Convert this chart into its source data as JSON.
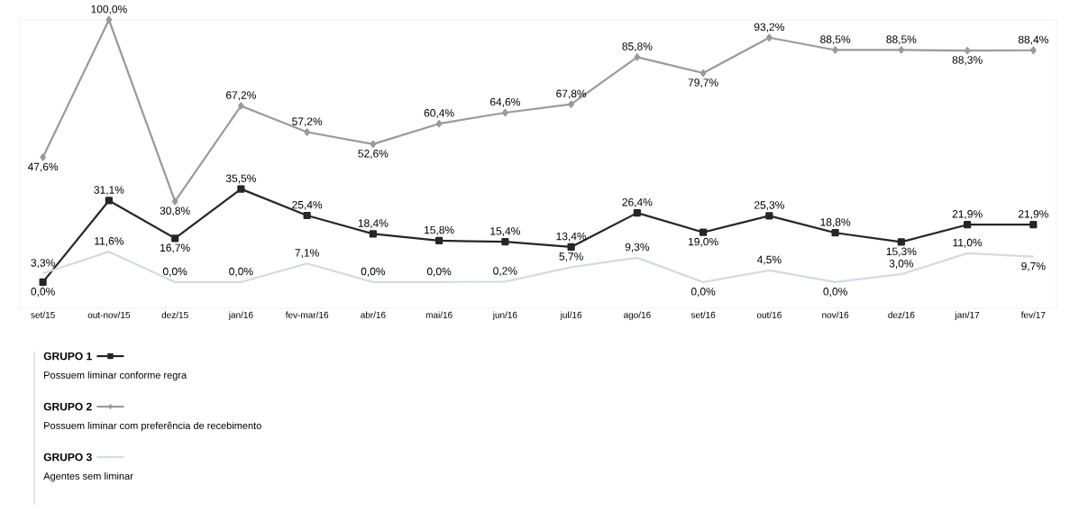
{
  "chart_data": {
    "type": "line",
    "categories": [
      "set/15",
      "out-nov/15",
      "dez/15",
      "jan/16",
      "fev-mar/16",
      "abr/16",
      "mai/16",
      "jun/16",
      "jul/16",
      "ago/16",
      "set/16",
      "out/16",
      "nov/16",
      "dez/16",
      "jan/17",
      "fev/17"
    ],
    "series": [
      {
        "name": "GRUPO 1",
        "color": "#262626",
        "marker": "square",
        "values": [
          0.0,
          31.1,
          16.7,
          35.5,
          25.4,
          18.4,
          15.8,
          15.4,
          13.4,
          26.4,
          19.0,
          25.3,
          18.8,
          15.3,
          21.9,
          21.9
        ],
        "value_labels": [
          "0,0%",
          "31,1%",
          "16,7%",
          "35,5%",
          "25,4%",
          "18,4%",
          "15,8%",
          "15,4%",
          "13,4%",
          "26,4%",
          "19,0%",
          "25,3%",
          "18,8%",
          "15,3%",
          "21,9%",
          "21,9%"
        ]
      },
      {
        "name": "GRUPO 2",
        "color": "#9a9a9a",
        "marker": "diamond",
        "values": [
          47.6,
          100.0,
          30.8,
          67.2,
          57.2,
          52.6,
          60.4,
          64.6,
          67.8,
          85.8,
          79.7,
          93.2,
          88.5,
          88.5,
          88.3,
          88.4
        ],
        "value_labels": [
          "47,6%",
          "100,0%",
          "30,8%",
          "67,2%",
          "57,2%",
          "52,6%",
          "60,4%",
          "64,6%",
          "67,8%",
          "85,8%",
          "79,7%",
          "93,2%",
          "88,5%",
          "88,5%",
          "88,3%",
          "88,4%"
        ]
      },
      {
        "name": "GRUPO 3",
        "color": "#d3dbe3",
        "marker": "none",
        "values": [
          3.3,
          11.6,
          0.0,
          0.0,
          7.1,
          0.0,
          0.0,
          0.2,
          5.7,
          9.3,
          0.0,
          4.5,
          0.0,
          3.0,
          11.0,
          9.7
        ],
        "value_labels": [
          "3,3%",
          "11,6%",
          "0,0%",
          "0,0%",
          "7,1%",
          "0,0%",
          "0,0%",
          "0,2%",
          "5,7%",
          "9,3%",
          "0,0%",
          "4,5%",
          "0,0%",
          "3,0%",
          "11,0%",
          "9,7%"
        ]
      }
    ],
    "annotations": [
      "Possuem liminar conforme regra",
      "Possuem liminar com preferência de recebimento",
      "Agentes sem liminar"
    ],
    "legend": "bottom left",
    "tick_labels": "x"
  }
}
